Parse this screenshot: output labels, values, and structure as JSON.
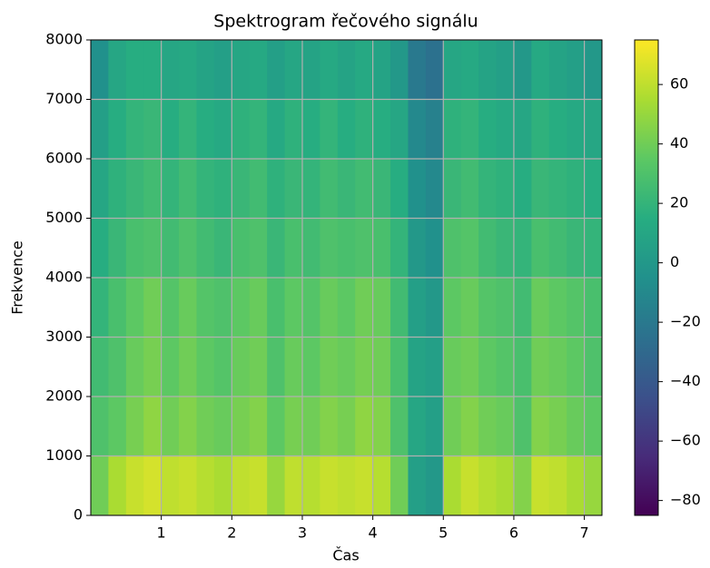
{
  "chart_data": {
    "type": "heatmap",
    "title": "Spektrogram řečového signálu",
    "x_label": "Čas",
    "y_label": "Frekvence",
    "colormap": "viridis",
    "grid": true,
    "x_bins": [
      0,
      0.25,
      0.5,
      0.75,
      1,
      1.25,
      1.5,
      1.75,
      2,
      2.25,
      2.5,
      2.75,
      3,
      3.25,
      3.5,
      3.75,
      4,
      4.25,
      4.5,
      4.75,
      5,
      5.25,
      5.5,
      5.75,
      6,
      6.25,
      6.5,
      6.75,
      7,
      7.25
    ],
    "y_bins": [
      0,
      1000,
      2000,
      3000,
      4000,
      5000,
      6000,
      7000,
      8000
    ],
    "values": [
      [
        40,
        55,
        62,
        65,
        60,
        62,
        58,
        55,
        60,
        62,
        50,
        60,
        58,
        62,
        60,
        62,
        58,
        40,
        5,
        0,
        55,
        62,
        58,
        55,
        45,
        62,
        60,
        55,
        50
      ],
      [
        30,
        35,
        42,
        48,
        40,
        45,
        40,
        38,
        42,
        45,
        35,
        42,
        40,
        45,
        42,
        48,
        45,
        30,
        10,
        5,
        40,
        45,
        40,
        38,
        30,
        45,
        42,
        38,
        35
      ],
      [
        25,
        30,
        38,
        42,
        35,
        40,
        35,
        32,
        38,
        40,
        30,
        38,
        35,
        40,
        38,
        42,
        40,
        28,
        8,
        5,
        38,
        40,
        35,
        32,
        28,
        40,
        38,
        35,
        30
      ],
      [
        20,
        28,
        35,
        40,
        32,
        38,
        32,
        30,
        35,
        38,
        28,
        35,
        32,
        38,
        35,
        40,
        38,
        25,
        5,
        0,
        35,
        38,
        32,
        30,
        25,
        38,
        35,
        32,
        28
      ],
      [
        15,
        22,
        28,
        30,
        25,
        30,
        25,
        22,
        28,
        30,
        22,
        28,
        25,
        30,
        28,
        30,
        28,
        20,
        0,
        -5,
        30,
        32,
        25,
        22,
        20,
        28,
        25,
        22,
        20
      ],
      [
        10,
        18,
        22,
        25,
        20,
        25,
        20,
        18,
        22,
        25,
        18,
        22,
        20,
        25,
        22,
        25,
        22,
        15,
        -5,
        -10,
        22,
        25,
        20,
        18,
        15,
        22,
        20,
        18,
        15
      ],
      [
        5,
        15,
        20,
        22,
        15,
        20,
        15,
        12,
        18,
        20,
        12,
        18,
        15,
        20,
        15,
        18,
        15,
        10,
        -10,
        -15,
        18,
        20,
        15,
        12,
        10,
        18,
        15,
        12,
        10
      ],
      [
        -5,
        10,
        15,
        15,
        10,
        12,
        8,
        5,
        10,
        12,
        5,
        10,
        8,
        12,
        8,
        12,
        8,
        0,
        -20,
        -25,
        10,
        12,
        8,
        5,
        0,
        12,
        8,
        5,
        0
      ]
    ],
    "xlim": [
      0,
      7.25
    ],
    "ylim": [
      0,
      8000
    ],
    "xticks": [
      1,
      2,
      3,
      4,
      5,
      6,
      7
    ],
    "yticks": [
      0,
      1000,
      2000,
      3000,
      4000,
      5000,
      6000,
      7000,
      8000
    ],
    "clim": [
      -85,
      75
    ],
    "cticks": [
      {
        "value": -80,
        "label": "−80"
      },
      {
        "value": -60,
        "label": "−60"
      },
      {
        "value": -40,
        "label": "−40"
      },
      {
        "value": -20,
        "label": "−20"
      },
      0,
      20,
      40,
      60
    ]
  }
}
